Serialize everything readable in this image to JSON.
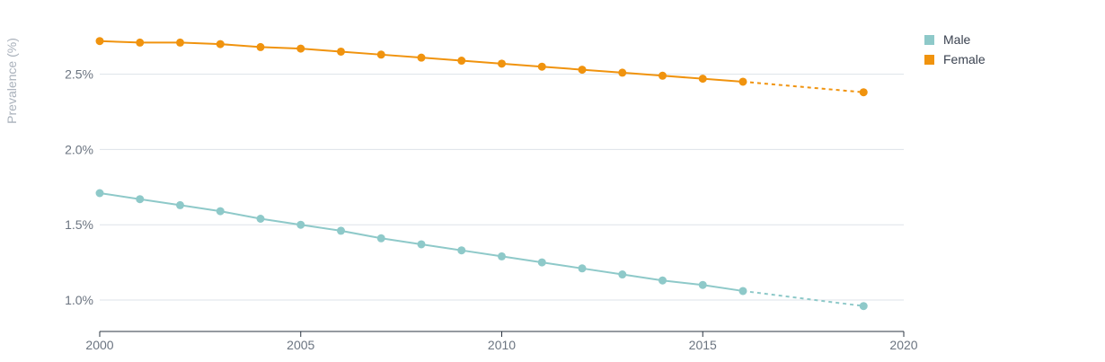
{
  "chart_data": {
    "type": "line",
    "ylabel": "Prevalence (%)",
    "xlabel": "",
    "xlim": [
      2000,
      2020
    ],
    "ylim": [
      0.8,
      2.8
    ],
    "x_ticks": [
      2000,
      2005,
      2010,
      2015,
      2020
    ],
    "y_ticks": [
      1.0,
      1.5,
      2.0,
      2.5
    ],
    "y_tick_labels": [
      "1.0%",
      "1.5%",
      "2.0%",
      "2.5%"
    ],
    "grid": "horizontal",
    "legend_position": "top-right",
    "series": [
      {
        "name": "Male",
        "color": "#8ec9c9",
        "x": [
          2000,
          2001,
          2002,
          2003,
          2004,
          2005,
          2006,
          2007,
          2008,
          2009,
          2010,
          2011,
          2012,
          2013,
          2014,
          2015,
          2016,
          2019
        ],
        "values": [
          1.71,
          1.67,
          1.63,
          1.59,
          1.54,
          1.5,
          1.46,
          1.41,
          1.37,
          1.33,
          1.29,
          1.25,
          1.21,
          1.17,
          1.13,
          1.1,
          1.06,
          0.96
        ],
        "projected_from_index": 16
      },
      {
        "name": "Female",
        "color": "#f0930e",
        "x": [
          2000,
          2001,
          2002,
          2003,
          2004,
          2005,
          2006,
          2007,
          2008,
          2009,
          2010,
          2011,
          2012,
          2013,
          2014,
          2015,
          2016,
          2019
        ],
        "values": [
          2.72,
          2.71,
          2.71,
          2.7,
          2.68,
          2.67,
          2.65,
          2.63,
          2.61,
          2.59,
          2.57,
          2.55,
          2.53,
          2.51,
          2.49,
          2.47,
          2.45,
          2.38
        ],
        "projected_from_index": 16
      }
    ]
  }
}
